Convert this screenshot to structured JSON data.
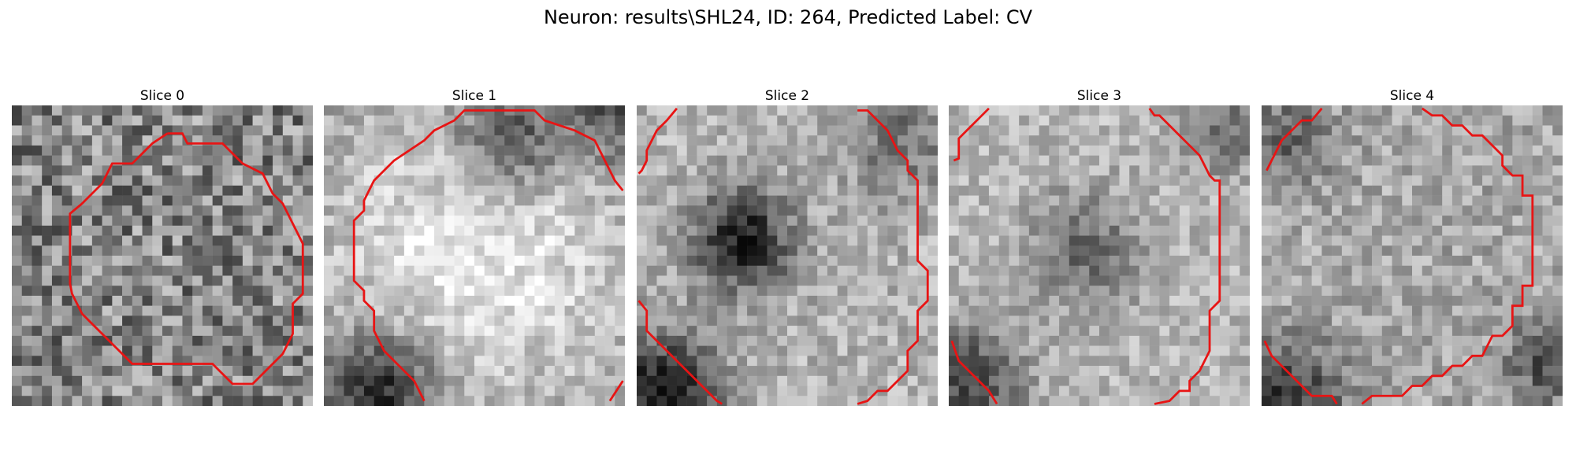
{
  "title": "Neuron: results\\SHL24, ID: 264, Predicted Label: CV",
  "panels": [
    {
      "title": "Slice 0",
      "dark_blob": null,
      "bright_blob": null,
      "contrast": 0.5
    },
    {
      "title": "Slice 1",
      "dark_blob": null,
      "bright_blob": "center",
      "contrast": 0.8
    },
    {
      "title": "Slice 2",
      "dark_blob": "left-center",
      "bright_blob": null,
      "contrast": 0.7
    },
    {
      "title": "Slice 3",
      "dark_blob": "center",
      "bright_blob": null,
      "contrast": 0.6
    },
    {
      "title": "Slice 4",
      "dark_blob": null,
      "bright_blob": null,
      "contrast": 0.6
    }
  ],
  "colors": {
    "contour": "#e81414"
  }
}
